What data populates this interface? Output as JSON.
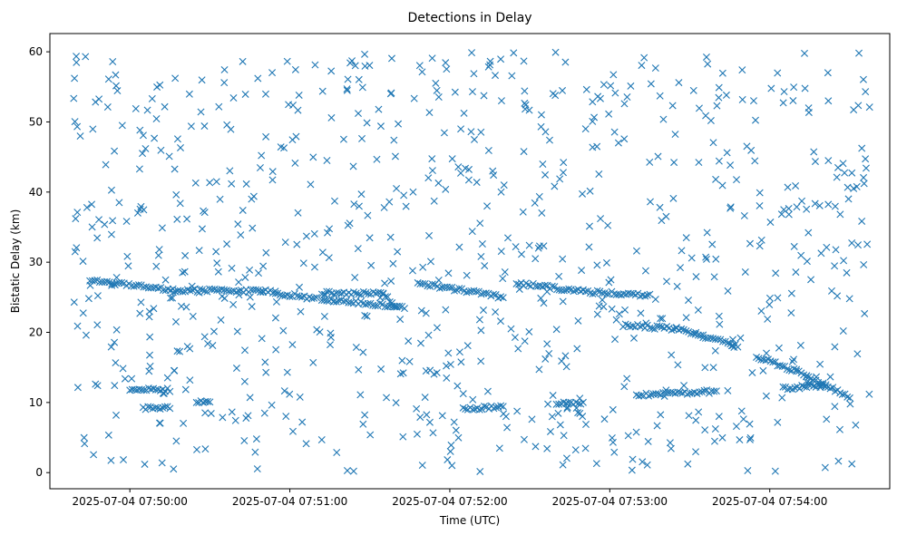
{
  "chart_data": {
    "type": "scatter",
    "title": "Detections in Delay",
    "xlabel": "Time (UTC)",
    "ylabel": "Bistatic Delay (km)",
    "marker": "x",
    "marker_color": "#1f77b4",
    "x_start": "2025-07-04 07:49:37",
    "x_end": "2025-07-04 07:54:38",
    "xlim": [
      "2025-07-04 07:49:30",
      "2025-07-04 07:54:45"
    ],
    "ylim": [
      -2.3,
      62.6
    ],
    "x_ticks": [
      "2025-07-04 07:50:00",
      "2025-07-04 07:51:00",
      "2025-07-04 07:52:00",
      "2025-07-04 07:53:00",
      "2025-07-04 07:54:00"
    ],
    "y_ticks": [
      0,
      10,
      20,
      30,
      40,
      50,
      60
    ],
    "grid": false,
    "tracks": [
      {
        "points": [
          [
            "2025-07-04 07:49:45",
            27.5
          ],
          [
            "2025-07-04 07:50:18",
            26.0
          ],
          [
            "2025-07-04 07:50:50",
            25.9
          ],
          [
            "2025-07-04 07:51:10",
            24.8
          ]
        ]
      },
      {
        "points": [
          [
            "2025-07-04 07:51:12",
            25.6
          ],
          [
            "2025-07-04 07:51:35",
            25.5
          ],
          [
            "2025-07-04 07:51:40",
            23.5
          ]
        ]
      },
      {
        "points": [
          [
            "2025-07-04 07:51:12",
            24.8
          ],
          [
            "2025-07-04 07:51:43",
            23.6
          ]
        ]
      },
      {
        "points": [
          [
            "2025-07-04 07:51:48",
            27.0
          ],
          [
            "2025-07-04 07:52:20",
            25.0
          ]
        ]
      },
      {
        "points": [
          [
            "2025-07-04 07:52:25",
            27.0
          ],
          [
            "2025-07-04 07:52:50",
            25.8
          ],
          [
            "2025-07-04 07:53:15",
            25.3
          ]
        ]
      },
      {
        "points": [
          [
            "2025-07-04 07:53:05",
            21.0
          ],
          [
            "2025-07-04 07:53:25",
            20.5
          ],
          [
            "2025-07-04 07:53:35",
            19.5
          ],
          [
            "2025-07-04 07:53:48",
            18.0
          ]
        ]
      },
      {
        "points": [
          [
            "2025-07-04 07:53:55",
            16.5
          ],
          [
            "2025-07-04 07:54:10",
            14.5
          ],
          [
            "2025-07-04 07:54:30",
            10.8
          ]
        ]
      },
      {
        "points": [
          [
            "2025-07-04 07:50:00",
            11.8
          ],
          [
            "2025-07-04 07:50:15",
            11.8
          ]
        ]
      },
      {
        "points": [
          [
            "2025-07-04 07:50:05",
            9.2
          ],
          [
            "2025-07-04 07:50:15",
            9.2
          ]
        ]
      },
      {
        "points": [
          [
            "2025-07-04 07:50:25",
            10.0
          ],
          [
            "2025-07-04 07:50:30",
            10.0
          ]
        ]
      },
      {
        "points": [
          [
            "2025-07-04 07:52:05",
            9.0
          ],
          [
            "2025-07-04 07:52:20",
            9.5
          ]
        ]
      },
      {
        "points": [
          [
            "2025-07-04 07:52:40",
            9.8
          ],
          [
            "2025-07-04 07:52:50",
            10.0
          ]
        ]
      },
      {
        "points": [
          [
            "2025-07-04 07:53:10",
            11.0
          ],
          [
            "2025-07-04 07:53:40",
            11.6
          ]
        ]
      },
      {
        "points": [
          [
            "2025-07-04 07:54:05",
            12.0
          ],
          [
            "2025-07-04 07:54:20",
            12.5
          ]
        ]
      }
    ]
  }
}
